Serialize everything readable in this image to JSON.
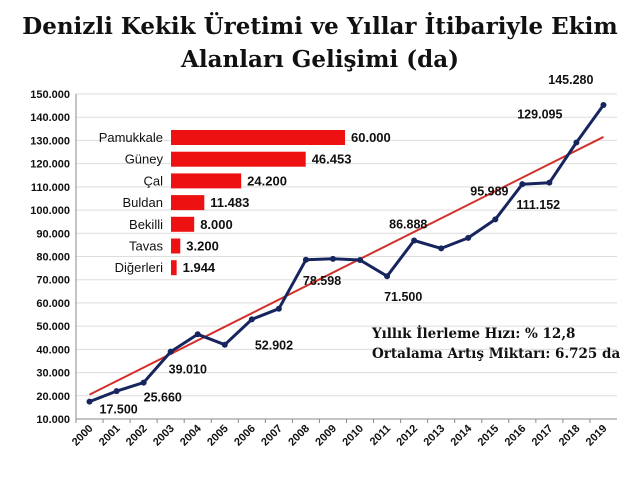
{
  "title": {
    "line1": "Denizli Kekik Üretimi ve Yıllar İtibariyle Ekim",
    "line2": "Alanları Gelişimi (da)"
  },
  "notes": {
    "line1": "Yıllık İlerleme Hızı: % 12,8",
    "line2": "Ortalama Artış Miktarı: 6.725 da"
  },
  "colors": {
    "series_line": "#17255e",
    "trend_line": "#d0312a",
    "inset_bar": "#ee1111",
    "grid": "#dddddd"
  },
  "chart_data": [
    {
      "type": "line",
      "title": "Denizli Kekik Üretimi ve Yıllar İtibariyle Ekim Alanları Gelişimi (da)",
      "x": [
        "2000",
        "2001",
        "2002",
        "2003",
        "2004",
        "2005",
        "2006",
        "2007",
        "2008",
        "2009",
        "2010",
        "2011",
        "2012",
        "2013",
        "2014",
        "2015",
        "2016",
        "2017",
        "2018",
        "2019"
      ],
      "series": [
        {
          "values": [
            17500,
            22000,
            25660,
            39010,
            46500,
            42000,
            52902,
            57500,
            78598,
            79000,
            78500,
            71500,
            86888,
            83500,
            88000,
            95989,
            111152,
            111800,
            129095,
            145280
          ]
        }
      ],
      "trendline": {
        "type": "linear",
        "start": 20500,
        "end": 131500
      },
      "data_labels": [
        {
          "index": 0,
          "text": "17.500"
        },
        {
          "index": 2,
          "text": "25.660"
        },
        {
          "index": 3,
          "text": "39.010"
        },
        {
          "index": 6,
          "text": "52.902"
        },
        {
          "index": 8,
          "text": "78.598"
        },
        {
          "index": 11,
          "text": "71.500"
        },
        {
          "index": 12,
          "text": "86.888"
        },
        {
          "index": 15,
          "text": "95.989"
        },
        {
          "index": 16,
          "text": "111.152"
        },
        {
          "index": 18,
          "text": "129.095"
        },
        {
          "index": 19,
          "text": "145.280"
        }
      ],
      "yticks": [
        "10.000",
        "20.000",
        "30.000",
        "40.000",
        "50.000",
        "60.000",
        "70.000",
        "80.000",
        "90.000",
        "100.000",
        "110.000",
        "120.000",
        "130.000",
        "140.000",
        "150.000"
      ],
      "ylim": [
        10000,
        150000
      ],
      "grid": true
    },
    {
      "type": "bar",
      "orientation": "horizontal",
      "categories": [
        "Pamukkale",
        "Güney",
        "Çal",
        "Buldan",
        "Bekilli",
        "Tavas",
        "Diğerleri"
      ],
      "values": [
        60000,
        46453,
        24200,
        11483,
        8000,
        3200,
        1944
      ],
      "value_labels": [
        "60.000",
        "46.453",
        "24.200",
        "11.483",
        "8.000",
        "3.200",
        "1.944"
      ]
    }
  ]
}
